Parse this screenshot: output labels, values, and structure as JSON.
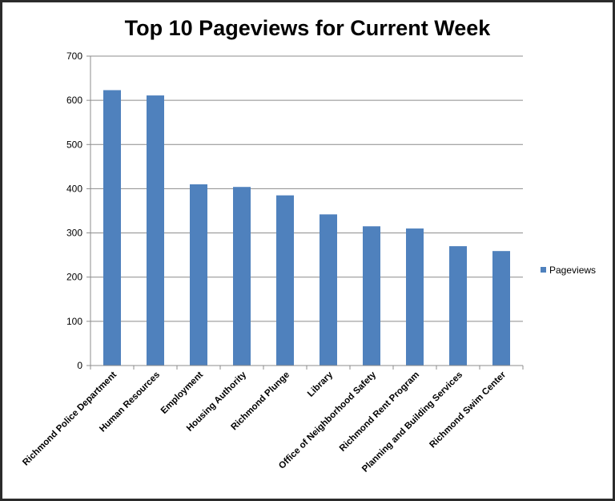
{
  "chart_data": {
    "type": "bar",
    "title": "Top 10 Pageviews for Current Week",
    "categories": [
      "Richmond Police Department",
      "Human Resources",
      "Employment",
      "Housing Authority",
      "Richmond Plunge",
      "Library",
      "Office of Neighborhood Safety",
      "Richmond Rent Program",
      "Planning and Building Services",
      "Richmond Swim Center"
    ],
    "series": [
      {
        "name": "Pageviews",
        "values": [
          623,
          611,
          410,
          404,
          385,
          342,
          315,
          310,
          270,
          259
        ]
      }
    ],
    "ylim": [
      0,
      700
    ],
    "yticks": [
      0,
      100,
      200,
      300,
      400,
      500,
      600,
      700
    ],
    "grid": true,
    "legend_position": "right",
    "bar_color": "#4f81bd"
  }
}
